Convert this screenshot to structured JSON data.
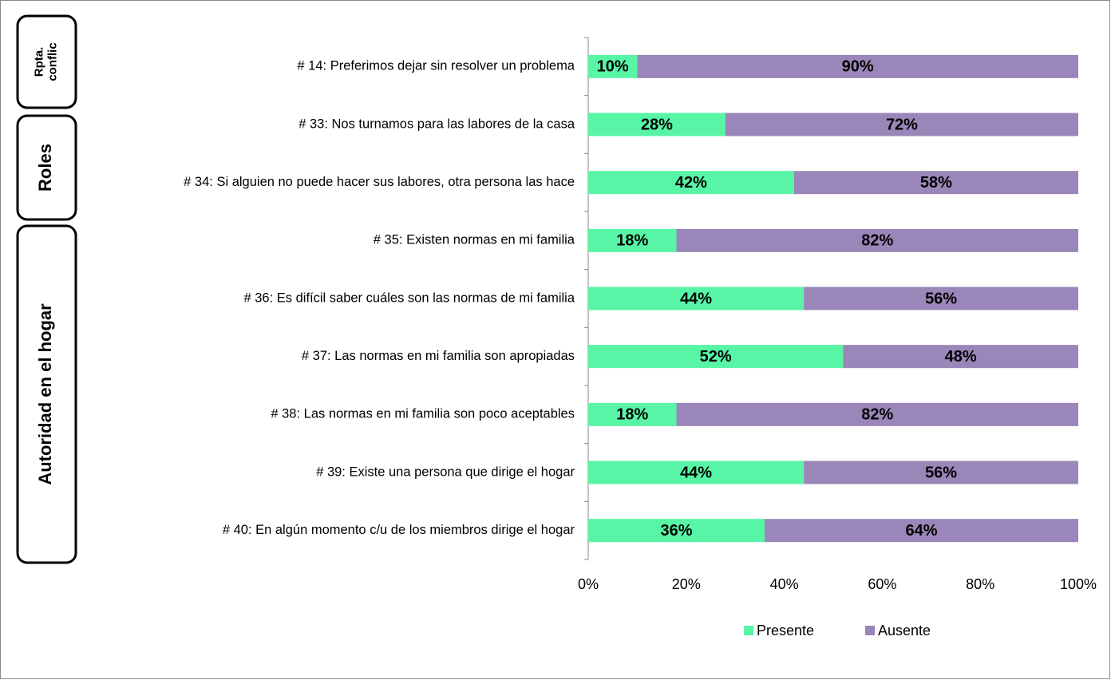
{
  "chart_data": {
    "type": "stacked_barh",
    "groups": [
      "Rpta. conflic",
      "Roles",
      "Autoridad en el hogar"
    ],
    "categories": [
      "# 14: Preferimos dejar sin resolver un problema",
      "# 33: Nos turnamos para las labores de la casa",
      "# 34: Si alguien no puede hacer sus labores, otra persona las hace",
      "# 35: Existen normas en mi familia",
      "# 36: Es difícil saber cuáles son las normas de mi familia",
      "# 37: Las normas en mi familia son apropiadas",
      "# 38: Las normas en mi familia son poco aceptables",
      "# 39: Existe una persona que dirige el hogar",
      "# 40: En algún momento c/u de los miembros dirige el hogar"
    ],
    "series": [
      {
        "name": "Presente",
        "color": "#57f5a5",
        "values": [
          10,
          28,
          42,
          18,
          44,
          52,
          18,
          44,
          36
        ],
        "value_labels": [
          "10%",
          "28%",
          "42%",
          "18%",
          "44%",
          "52%",
          "18%",
          "44%",
          "36%"
        ]
      },
      {
        "name": "Ausente",
        "color": "#9a86b8",
        "values": [
          90,
          72,
          58,
          82,
          56,
          48,
          82,
          56,
          64
        ],
        "value_labels": [
          "90%",
          "72%",
          "58%",
          "82%",
          "56%",
          "48%",
          "82%",
          "56%",
          "64%"
        ]
      }
    ],
    "xlim": [
      0,
      100
    ],
    "xticks": [
      {
        "value": 0,
        "label": "0%"
      },
      {
        "value": 20,
        "label": "20%"
      },
      {
        "value": 40,
        "label": "40%"
      },
      {
        "value": 60,
        "label": "60%"
      },
      {
        "value": 80,
        "label": "80%"
      },
      {
        "value": 100,
        "label": "100%"
      }
    ],
    "grid": false,
    "legend": "bottom"
  }
}
